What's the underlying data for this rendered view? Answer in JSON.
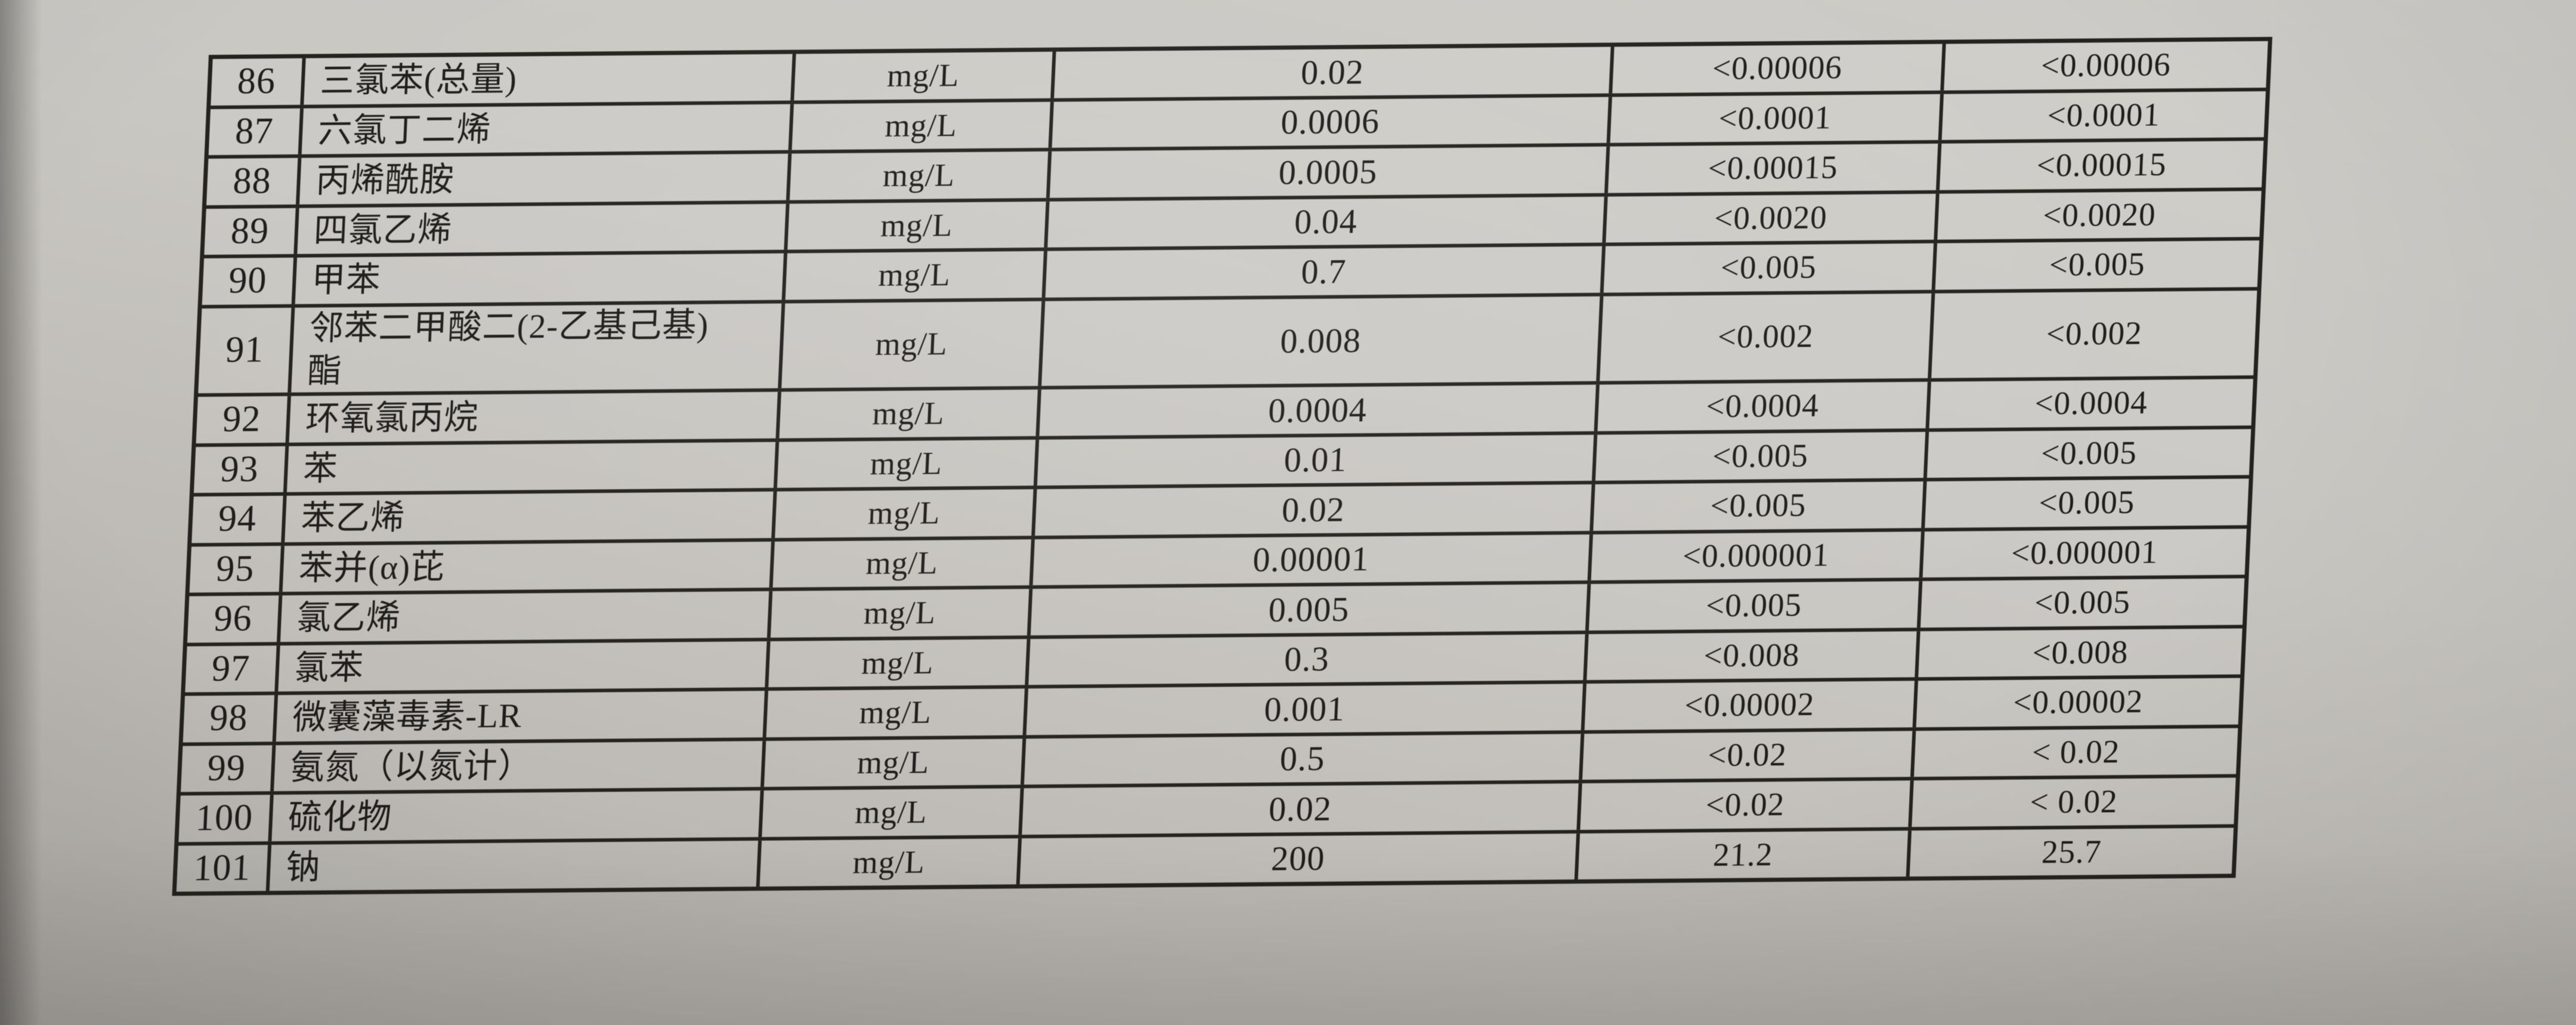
{
  "colors": {
    "paper": "#c8c6c1",
    "grid_line": "#23221f",
    "ink": "#1d1c1a"
  },
  "table": {
    "rows": [
      {
        "no": "86",
        "name": "三氯苯(总量)",
        "unit": "mg/L",
        "limit": "0.02",
        "result1": "<0.00006",
        "result2": "<0.00006"
      },
      {
        "no": "87",
        "name": "六氯丁二烯",
        "unit": "mg/L",
        "limit": "0.0006",
        "result1": "<0.0001",
        "result2": "<0.0001"
      },
      {
        "no": "88",
        "name": "丙烯酰胺",
        "unit": "mg/L",
        "limit": "0.0005",
        "result1": "<0.00015",
        "result2": "<0.00015"
      },
      {
        "no": "89",
        "name": "四氯乙烯",
        "unit": "mg/L",
        "limit": "0.04",
        "result1": "<0.0020",
        "result2": "<0.0020"
      },
      {
        "no": "90",
        "name": "甲苯",
        "unit": "mg/L",
        "limit": "0.7",
        "result1": "<0.005",
        "result2": "<0.005"
      },
      {
        "no": "91",
        "name": "邻苯二甲酸二(2-乙基己基)\n酯",
        "unit": "mg/L",
        "limit": "0.008",
        "result1": "<0.002",
        "result2": "<0.002"
      },
      {
        "no": "92",
        "name": "环氧氯丙烷",
        "unit": "mg/L",
        "limit": "0.0004",
        "result1": "<0.0004",
        "result2": "<0.0004"
      },
      {
        "no": "93",
        "name": "苯",
        "unit": "mg/L",
        "limit": "0.01",
        "result1": "<0.005",
        "result2": "<0.005"
      },
      {
        "no": "94",
        "name": "苯乙烯",
        "unit": "mg/L",
        "limit": "0.02",
        "result1": "<0.005",
        "result2": "<0.005"
      },
      {
        "no": "95",
        "name": "苯并(α)芘",
        "unit": "mg/L",
        "limit": "0.00001",
        "result1": "<0.000001",
        "result2": "<0.000001"
      },
      {
        "no": "96",
        "name": "氯乙烯",
        "unit": "mg/L",
        "limit": "0.005",
        "result1": "<0.005",
        "result2": "<0.005"
      },
      {
        "no": "97",
        "name": "氯苯",
        "unit": "mg/L",
        "limit": "0.3",
        "result1": "<0.008",
        "result2": "<0.008"
      },
      {
        "no": "98",
        "name": "微囊藻毒素-LR",
        "unit": "mg/L",
        "limit": "0.001",
        "result1": "<0.00002",
        "result2": "<0.00002"
      },
      {
        "no": "99",
        "name": "氨氮（以氮计）",
        "unit": "mg/L",
        "limit": "0.5",
        "result1": "<0.02",
        "result2": "< 0.02"
      },
      {
        "no": "100",
        "name": "硫化物",
        "unit": "mg/L",
        "limit": "0.02",
        "result1": "<0.02",
        "result2": "< 0.02"
      },
      {
        "no": "101",
        "name": "钠",
        "unit": "mg/L",
        "limit": "200",
        "result1": "21.2",
        "result2": "25.7"
      }
    ]
  }
}
